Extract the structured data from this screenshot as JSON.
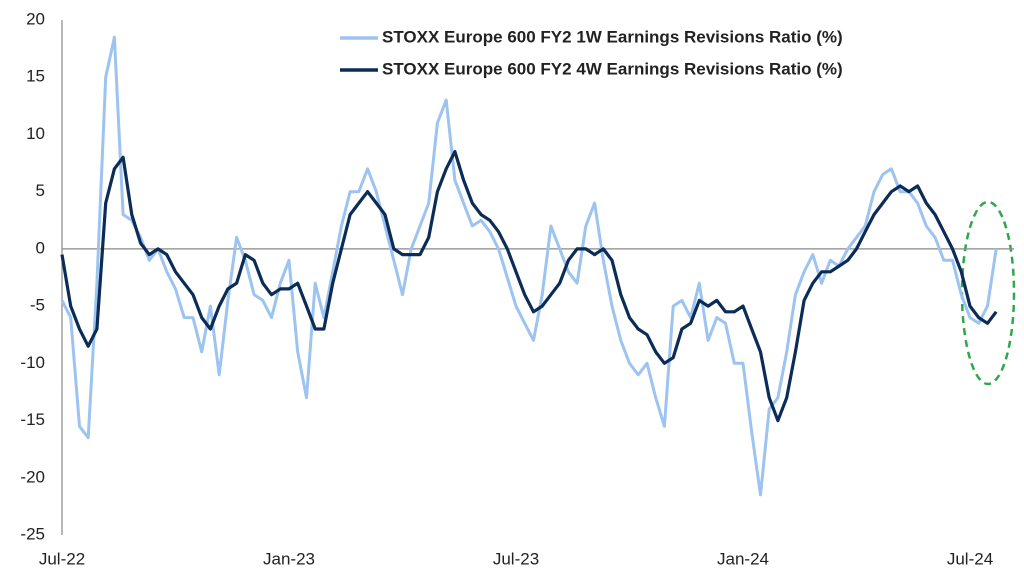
{
  "chart_data": {
    "type": "line",
    "categories": [
      "Jul-22",
      null,
      null,
      null,
      null,
      null,
      null,
      null,
      null,
      null,
      null,
      null,
      null,
      null,
      null,
      null,
      null,
      null,
      null,
      null,
      null,
      null,
      null,
      null,
      null,
      null,
      "Jan-23",
      null,
      null,
      null,
      null,
      null,
      null,
      null,
      null,
      null,
      null,
      null,
      null,
      null,
      null,
      null,
      null,
      null,
      null,
      null,
      null,
      null,
      null,
      null,
      null,
      null,
      "Jul-23",
      null,
      null,
      null,
      null,
      null,
      null,
      null,
      null,
      null,
      null,
      null,
      null,
      null,
      null,
      null,
      null,
      null,
      null,
      null,
      null,
      null,
      null,
      null,
      null,
      null,
      "Jan-24",
      null,
      null,
      null,
      null,
      null,
      null,
      null,
      null,
      null,
      null,
      null,
      null,
      null,
      null,
      null,
      null,
      null,
      null,
      null,
      null,
      null,
      null,
      null,
      null,
      null,
      "Jul-24",
      null,
      null,
      null
    ],
    "series": [
      {
        "name": "STOXX Europe 600 FY2 1W Earnings Revisions Ratio (%)",
        "color": "#9dc3f0",
        "values": [
          -4.5,
          -6,
          -15.5,
          -16.5,
          -3,
          15,
          18.5,
          3,
          2.5,
          1,
          -1,
          0,
          -2,
          -3.5,
          -6,
          -6,
          -9,
          -5,
          -11,
          -4.5,
          1,
          -1,
          -4,
          -4.5,
          -6,
          -3,
          -1,
          -9,
          -13,
          -3,
          -6,
          -2,
          2,
          5,
          5,
          7,
          5,
          2,
          -1,
          -4,
          0,
          2,
          4,
          11,
          13,
          6,
          4,
          2,
          2.5,
          1.5,
          0,
          -2.5,
          -5,
          -6.5,
          -8,
          -4,
          2,
          0,
          -2,
          -3,
          2,
          4,
          -1,
          -5,
          -8,
          -10,
          -11,
          -10,
          -13,
          -15.5,
          -5,
          -4.5,
          -6,
          -3,
          -8,
          -6,
          -6.5,
          -10,
          -10,
          -16,
          -21.5,
          -14,
          -13,
          -9,
          -4,
          -2,
          -0.5,
          -3,
          -1,
          -1.5,
          0,
          1,
          2,
          5,
          6.5,
          7,
          5,
          5,
          4,
          2,
          1,
          -1,
          -1,
          -4,
          -6,
          -6.5,
          -5,
          0
        ]
      },
      {
        "name": "STOXX Europe 600 FY2 4W Earnings Revisions Ratio (%)",
        "color": "#0b2c57",
        "values": [
          -0.5,
          -5,
          -7,
          -8.5,
          -7,
          4,
          7,
          8,
          3,
          0.5,
          -0.5,
          0,
          -0.5,
          -2,
          -3,
          -4,
          -6,
          -7,
          -5,
          -3.5,
          -3,
          -0.5,
          -1,
          -3,
          -4,
          -3.5,
          -3.5,
          -3,
          -5,
          -7,
          -7,
          -3,
          0,
          3,
          4,
          5,
          4,
          3,
          0,
          -0.5,
          -0.5,
          -0.5,
          1,
          5,
          7,
          8.5,
          6,
          4,
          3,
          2.5,
          1.5,
          0,
          -2,
          -4,
          -5.5,
          -5,
          -4,
          -3,
          -1,
          0,
          0,
          -0.5,
          0,
          -1,
          -4,
          -6,
          -7,
          -7.5,
          -9,
          -10,
          -9.5,
          -7,
          -6.5,
          -4.5,
          -5,
          -4.5,
          -5.5,
          -5.5,
          -5,
          -7,
          -9,
          -13,
          -15,
          -13,
          -9,
          -4.5,
          -3,
          -2,
          -2,
          -1.5,
          -1,
          0,
          1.5,
          3,
          4,
          5,
          5.5,
          5,
          5.5,
          4,
          3,
          1.5,
          0,
          -2,
          -5,
          -6,
          -6.5,
          -5.5
        ]
      }
    ],
    "ylim": [
      -25,
      20
    ],
    "yticks": [
      20,
      15,
      10,
      5,
      0,
      -5,
      -10,
      -15,
      -20,
      -25
    ],
    "legend": "upper right",
    "grid": false
  }
}
